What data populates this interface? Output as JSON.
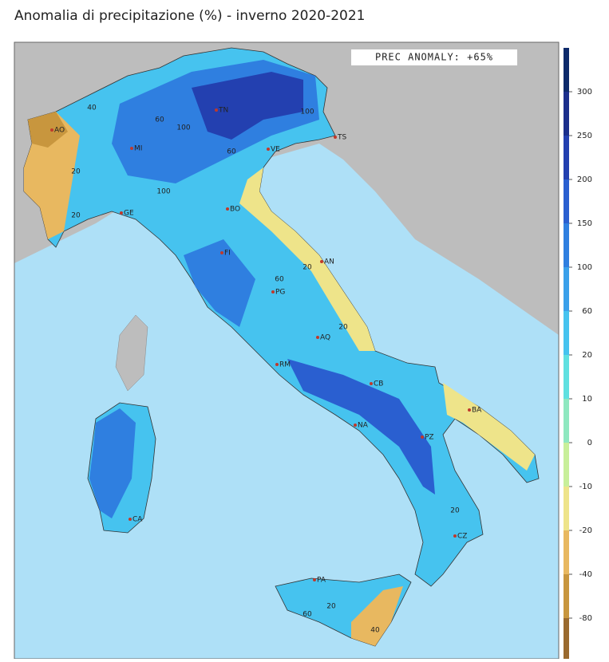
{
  "title": "Anomalia di precipitazione (%) - inverno 2020-2021",
  "annotation": "PREC ANOMALY: +65%",
  "colorbar": {
    "ticks": [
      300,
      250,
      200,
      150,
      100,
      60,
      20,
      10,
      0,
      -10,
      -20,
      -40,
      -80
    ],
    "colors": [
      "#0d2a6b",
      "#1b2f8c",
      "#2340b0",
      "#2a5fd0",
      "#2f7fe0",
      "#3aa0ea",
      "#46c3ef",
      "#5fe0e0",
      "#8fe8c0",
      "#c8ef9a",
      "#eee48a",
      "#e8b860",
      "#c8963e",
      "#9a6a2e"
    ]
  },
  "cities": [
    "AO",
    "TN",
    "TS",
    "MI",
    "VE",
    "GE",
    "BO",
    "FI",
    "AN",
    "PG",
    "AQ",
    "RM",
    "CB",
    "BA",
    "NA",
    "PZ",
    "CA",
    "PA",
    "CZ"
  ],
  "contour_labels": [
    "40",
    "60",
    "100",
    "60",
    "100",
    "20",
    "20",
    "100",
    "20",
    "60",
    "20",
    "20",
    "20",
    "60",
    "40"
  ]
}
